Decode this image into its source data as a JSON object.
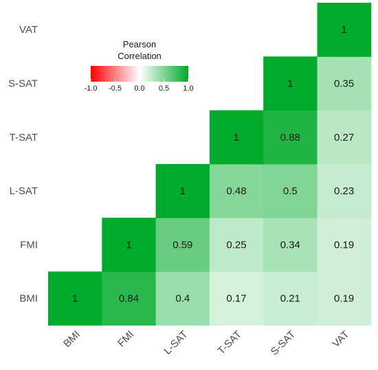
{
  "chart_data": {
    "type": "heatmap",
    "variables": [
      "BMI",
      "FMI",
      "L-SAT",
      "T-SAT",
      "S-SAT",
      "VAT"
    ],
    "matrix": [
      [
        1,
        null,
        null,
        null,
        null,
        null
      ],
      [
        0.84,
        1,
        null,
        null,
        null,
        null
      ],
      [
        0.4,
        0.59,
        1,
        null,
        null,
        null
      ],
      [
        0.17,
        0.25,
        0.48,
        1,
        null,
        null
      ],
      [
        0.21,
        0.34,
        0.5,
        0.88,
        1,
        null
      ],
      [
        0.19,
        0.19,
        0.23,
        0.27,
        0.35,
        1
      ]
    ],
    "cell_labels": [
      [
        "1",
        "",
        "",
        "",
        "",
        ""
      ],
      [
        "0.84",
        "1",
        "",
        "",
        "",
        ""
      ],
      [
        "0.4",
        "0.59",
        "1",
        "",
        "",
        ""
      ],
      [
        "0.17",
        "0.25",
        "0.48",
        "1",
        "",
        ""
      ],
      [
        "0.21",
        "0.34",
        "0.5",
        "0.88",
        "1",
        ""
      ],
      [
        "0.19",
        "0.19",
        "0.23",
        "0.27",
        "0.35",
        "1"
      ]
    ],
    "legend": {
      "title_line1": "Pearson",
      "title_line2": "Correlation",
      "ticks": [
        "-1.0",
        "-0.5",
        "0.0",
        "0.5",
        "1.0"
      ],
      "tick_values": [
        -1.0,
        -0.5,
        0.0,
        0.5,
        1.0
      ],
      "placement": "top-left"
    },
    "colors": {
      "low": "#ff0000",
      "mid": "#ffffff",
      "high": "#00aa2a"
    },
    "value_range": [
      -1,
      1
    ],
    "grid": false
  }
}
